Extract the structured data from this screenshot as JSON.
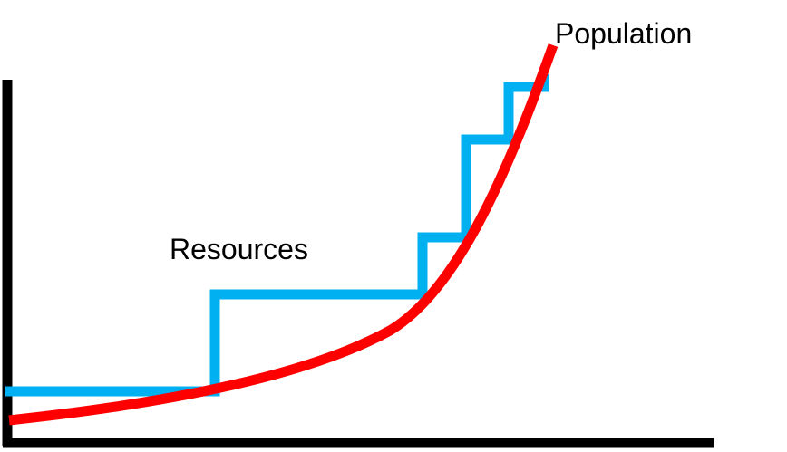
{
  "labels": {
    "population": "Population",
    "resources": "Resources"
  },
  "colors": {
    "population": "#ff0000",
    "resources": "#00b0f0",
    "axes": "#000000",
    "background": "#ffffff"
  }
}
